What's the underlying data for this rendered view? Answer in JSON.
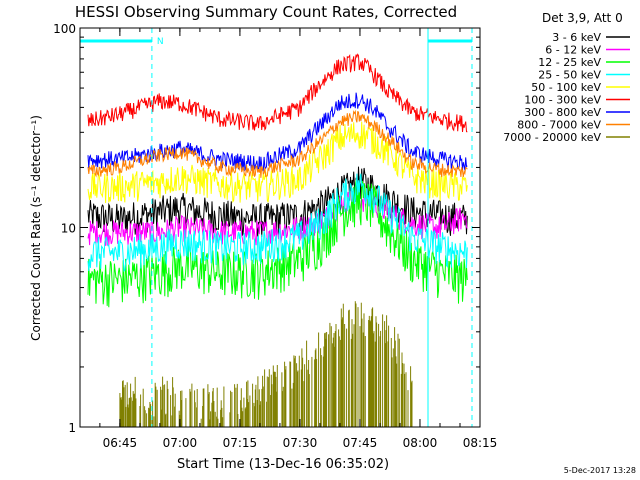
{
  "chart_data": {
    "type": "line",
    "title": "HESSI Observing Summary Count Rates, Corrected",
    "xlabel": "Start Time (13-Dec-16 06:35:02)",
    "ylabel": "Corrected Count Rate (s⁻¹ detector⁻¹)",
    "y_scale": "log",
    "ylim": [
      1,
      100
    ],
    "y_ticks": [
      1,
      10,
      100
    ],
    "y_tick_labels": [
      "1",
      "10",
      "100"
    ],
    "xlim": [
      "06:35:02",
      "08:15"
    ],
    "x_tick_labels": [
      "06:45",
      "07:00",
      "07:15",
      "07:30",
      "07:45",
      "08:00",
      "08:15"
    ],
    "legend_title": "Det 3,9, Att 0",
    "legend_location": "right, outside",
    "footer_date": "5-Dec-2017 13:28",
    "night_marker_label": "N",
    "night_intervals": [
      [
        "06:35:02",
        "06:53"
      ],
      [
        "08:02",
        "08:13"
      ]
    ],
    "markers": [
      {
        "time": "06:53",
        "color": "#00ffff",
        "style": "dashed"
      },
      {
        "time": "08:02",
        "color": "#00ffff",
        "style": "solid"
      },
      {
        "time": "08:13",
        "color": "#00ffff",
        "style": "dashed"
      }
    ],
    "x_range_data": [
      "06:35:02",
      "08:13"
    ],
    "series": [
      {
        "name": "3 - 6 keV",
        "color": "#000000",
        "x": [
          "06:37",
          "06:45",
          "06:55",
          "07:00",
          "07:10",
          "07:20",
          "07:30",
          "07:36",
          "07:40",
          "07:45",
          "07:48",
          "07:52",
          "07:58",
          "08:05",
          "08:12"
        ],
        "y": [
          11.5,
          11,
          12,
          12.5,
          11.5,
          11,
          11.5,
          13,
          15,
          17,
          16,
          14,
          12,
          11.5,
          11
        ]
      },
      {
        "name": "6 - 12 keV",
        "color": "#ff00ff",
        "x": [
          "06:37",
          "06:45",
          "06:55",
          "07:00",
          "07:10",
          "07:20",
          "07:30",
          "07:36",
          "07:40",
          "07:45",
          "07:48",
          "07:52",
          "07:58",
          "08:05",
          "08:12"
        ],
        "y": [
          9.5,
          9.5,
          9.5,
          10,
          9.5,
          9.5,
          10,
          11,
          13,
          14,
          13.5,
          12,
          10.5,
          10,
          11.5
        ]
      },
      {
        "name": "12 - 25 keV",
        "color": "#00ff00",
        "x": [
          "06:37",
          "06:45",
          "06:55",
          "07:00",
          "07:10",
          "07:20",
          "07:30",
          "07:36",
          "07:40",
          "07:45",
          "07:48",
          "07:52",
          "07:58",
          "08:05",
          "08:12"
        ],
        "y": [
          5.5,
          5.5,
          6,
          6.5,
          6,
          6,
          7,
          9,
          12,
          14,
          13,
          10,
          7,
          6,
          5.5
        ]
      },
      {
        "name": "25 - 50 keV",
        "color": "#00ffff",
        "x": [
          "06:37",
          "06:45",
          "06:55",
          "07:00",
          "07:10",
          "07:20",
          "07:30",
          "07:36",
          "07:40",
          "07:45",
          "07:48",
          "07:52",
          "07:58",
          "08:05",
          "08:12"
        ],
        "y": [
          7.5,
          7.5,
          8,
          8.5,
          8,
          8,
          9,
          11,
          14,
          16.5,
          15,
          12,
          9,
          8,
          7.5
        ]
      },
      {
        "name": "50 - 100 keV",
        "color": "#ffff00",
        "x": [
          "06:37",
          "06:45",
          "06:55",
          "07:00",
          "07:10",
          "07:20",
          "07:30",
          "07:36",
          "07:40",
          "07:45",
          "07:48",
          "07:52",
          "07:58",
          "08:05",
          "08:12"
        ],
        "y": [
          16,
          16,
          17,
          18,
          16.5,
          16,
          17.5,
          23,
          28,
          30,
          28,
          24,
          18,
          16.5,
          16
        ]
      },
      {
        "name": "100 - 300 keV",
        "color": "#ff0000",
        "x": [
          "06:37",
          "06:45",
          "06:55",
          "07:00",
          "07:10",
          "07:20",
          "07:30",
          "07:36",
          "07:40",
          "07:45",
          "07:48",
          "07:52",
          "07:58",
          "08:05",
          "08:12"
        ],
        "y": [
          34,
          37,
          43,
          42,
          35,
          33,
          40,
          55,
          65,
          68,
          60,
          48,
          38,
          35,
          33
        ]
      },
      {
        "name": "300 - 800 keV",
        "color": "#0000ff",
        "x": [
          "06:37",
          "06:45",
          "06:55",
          "07:00",
          "07:10",
          "07:20",
          "07:30",
          "07:36",
          "07:40",
          "07:45",
          "07:48",
          "07:52",
          "07:58",
          "08:05",
          "08:12"
        ],
        "y": [
          22,
          22,
          24,
          25,
          22,
          21,
          25,
          34,
          42,
          44,
          40,
          32,
          24,
          22,
          21
        ]
      },
      {
        "name": "800 - 7000 keV",
        "color": "#ff8000",
        "x": [
          "06:37",
          "06:45",
          "06:55",
          "07:00",
          "07:10",
          "07:20",
          "07:30",
          "07:36",
          "07:40",
          "07:45",
          "07:48",
          "07:52",
          "07:58",
          "08:05",
          "08:12"
        ],
        "y": [
          19,
          20,
          23,
          24,
          20,
          19,
          22,
          28,
          34,
          36,
          33,
          28,
          21,
          19.5,
          19
        ]
      },
      {
        "name": "7000 - 20000 keV",
        "color": "#808000",
        "x": [
          "06:45",
          "07:00",
          "07:15",
          "07:30",
          "07:36",
          "07:40",
          "07:45",
          "07:48",
          "07:52",
          "07:58"
        ],
        "y": [
          1.5,
          1.5,
          1.4,
          2,
          3,
          3.5,
          3.7,
          3.5,
          3,
          1.8
        ]
      }
    ]
  }
}
